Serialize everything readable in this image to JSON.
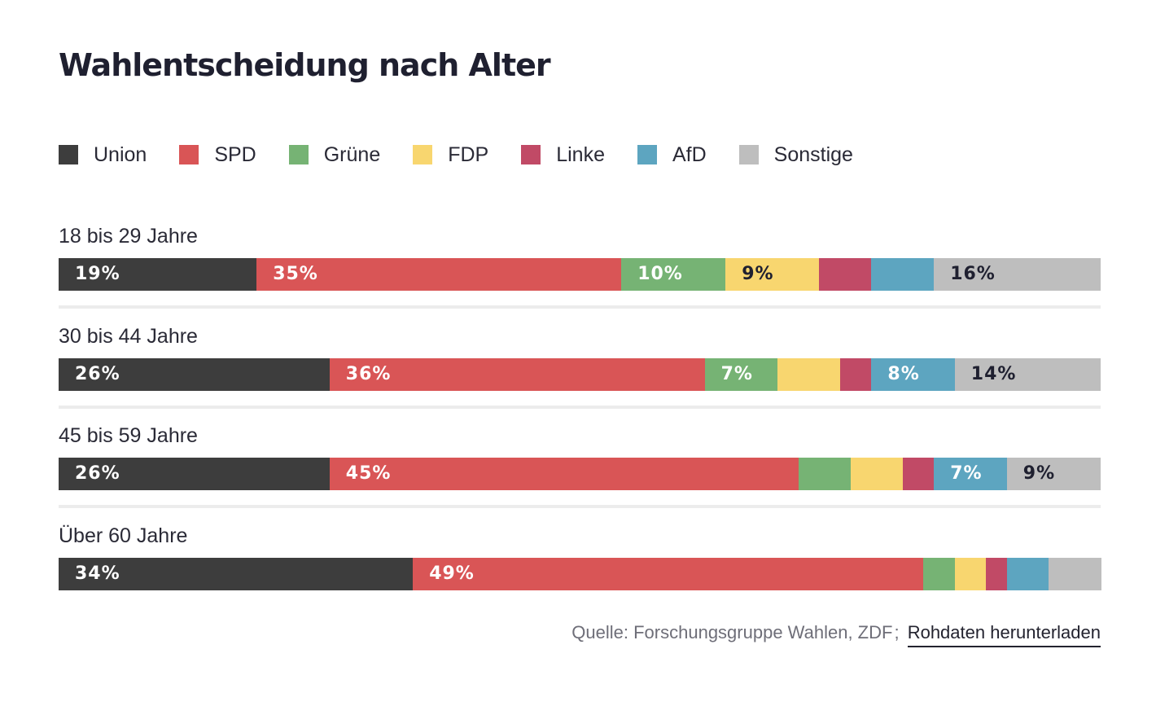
{
  "chart_data": {
    "type": "bar",
    "orientation": "horizontal",
    "stacked": true,
    "title": "Wahlentscheidung nach Alter",
    "legend_position": "top-left",
    "series": [
      {
        "name": "Union",
        "color": "#3d3d3d",
        "label_color": "#ffffff"
      },
      {
        "name": "SPD",
        "color": "#d95556",
        "label_color": "#ffffff"
      },
      {
        "name": "Grüne",
        "color": "#76b374",
        "label_color": "#ffffff"
      },
      {
        "name": "FDP",
        "color": "#f8d66f",
        "label_color": "#1f2030"
      },
      {
        "name": "Linke",
        "color": "#c14a66",
        "label_color": "#ffffff"
      },
      {
        "name": "AfD",
        "color": "#5da5c0",
        "label_color": "#ffffff"
      },
      {
        "name": "Sonstige",
        "color": "#bebebe",
        "label_color": "#1f2030"
      }
    ],
    "categories": [
      {
        "label": "18 bis 29 Jahre",
        "values": [
          19,
          35,
          10,
          9,
          5,
          6,
          16
        ],
        "data_labels": [
          "19%",
          "35%",
          "10%",
          "9%",
          "",
          "",
          "16%"
        ]
      },
      {
        "label": "30 bis 44 Jahre",
        "values": [
          26,
          36,
          7,
          6,
          3,
          8,
          14
        ],
        "data_labels": [
          "26%",
          "36%",
          "7%",
          "",
          "",
          "8%",
          "14%"
        ]
      },
      {
        "label": "45 bis 59 Jahre",
        "values": [
          26,
          45,
          5,
          5,
          3,
          7,
          9
        ],
        "data_labels": [
          "26%",
          "45%",
          "",
          "",
          "",
          "7%",
          "9%"
        ]
      },
      {
        "label": "Über 60 Jahre",
        "values": [
          34,
          49,
          3,
          3,
          2,
          4,
          5
        ],
        "data_labels": [
          "34%",
          "49%",
          "",
          "",
          "",
          "",
          ""
        ]
      }
    ],
    "xlim": [
      0,
      100
    ]
  },
  "footer": {
    "source": "Quelle: Forschungsgruppe Wahlen, ZDF",
    "separator": ";",
    "download_label": "Rohdaten herunterladen"
  }
}
